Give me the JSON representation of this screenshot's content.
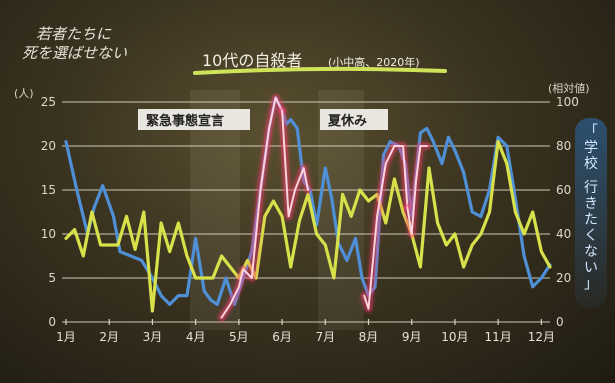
{
  "logo": {
    "line1": "若者たちに",
    "line2": "死を選ばせない"
  },
  "side_label": "「学校 行きたくない」",
  "chart_data": {
    "type": "line",
    "title": "10代の自殺者",
    "subtitle": "(小中高、2020年)",
    "ylabel": "(人)",
    "y2label": "(相対値)",
    "categories": [
      "1月",
      "2月",
      "3月",
      "4月",
      "5月",
      "6月",
      "7月",
      "8月",
      "9月",
      "10月",
      "11月",
      "12月"
    ],
    "ylim": [
      0,
      25
    ],
    "y2lim": [
      0,
      100
    ],
    "yticks": [
      0,
      5,
      10,
      15,
      20,
      25
    ],
    "y2ticks": [
      0,
      20,
      40,
      60,
      80,
      100
    ],
    "annotations": [
      "緊急事態宣言",
      "夏休み"
    ],
    "series": [
      {
        "axis": "left",
        "color": "#4f8fd6",
        "x": [
          1,
          1.25,
          1.5,
          1.65,
          1.85,
          2.1,
          2.25,
          2.5,
          2.75,
          3.0,
          3.2,
          3.4,
          3.6,
          3.8,
          4.0,
          4.2,
          4.35,
          4.5,
          4.7,
          4.9,
          5.1,
          5.3,
          5.5,
          5.7,
          5.85,
          6.0,
          6.1,
          6.2,
          6.35,
          6.5,
          6.65,
          6.8,
          7.0,
          7.15,
          7.3,
          7.5,
          7.7,
          7.85,
          8.0,
          8.15,
          8.35,
          8.5,
          8.7,
          8.85,
          9.0,
          9.2,
          9.35,
          9.5,
          9.7,
          9.85,
          10.0,
          10.2,
          10.4,
          10.6,
          10.8,
          11.0,
          11.2,
          11.4,
          11.6,
          11.8,
          12.0,
          12.2
        ],
        "values": [
          20.5,
          15,
          10,
          13,
          15.5,
          12,
          8,
          7.5,
          7,
          5,
          3,
          2,
          3,
          3,
          9.5,
          3.5,
          2.5,
          2,
          5,
          2,
          5,
          8,
          15,
          22,
          25.5,
          24,
          22.5,
          23,
          22,
          16,
          15,
          11,
          17.5,
          14,
          9,
          7,
          9.5,
          5,
          3,
          4,
          19,
          20.5,
          20,
          18,
          12,
          21.5,
          22,
          20.5,
          18,
          21,
          19.5,
          17,
          12.5,
          12,
          15,
          21,
          20,
          14,
          7.5,
          4,
          5,
          6.5
        ]
      },
      {
        "axis": "right",
        "color": "#d8e04a",
        "x": [
          1,
          1.2,
          1.4,
          1.6,
          1.8,
          2.0,
          2.2,
          2.4,
          2.6,
          2.8,
          3.0,
          3.2,
          3.4,
          3.6,
          3.8,
          4.0,
          4.2,
          4.4,
          4.6,
          4.8,
          5.0,
          5.2,
          5.4,
          5.6,
          5.8,
          6.0,
          6.2,
          6.4,
          6.6,
          6.8,
          7.0,
          7.2,
          7.4,
          7.6,
          7.8,
          8.0,
          8.2,
          8.4,
          8.6,
          8.8,
          9.0,
          9.2,
          9.4,
          9.6,
          9.8,
          10.0,
          10.2,
          10.4,
          10.6,
          10.8,
          11.0,
          11.2,
          11.4,
          11.6,
          11.8,
          12.0,
          12.2
        ],
        "values": [
          38,
          42,
          30,
          50,
          35,
          35,
          35,
          48,
          33,
          50,
          5,
          45,
          32,
          45,
          30,
          20,
          20,
          20,
          30,
          25,
          20,
          28,
          20,
          48,
          55,
          48,
          25,
          46,
          58,
          40,
          35,
          20,
          58,
          48,
          60,
          55,
          58,
          45,
          65,
          50,
          40,
          25,
          70,
          45,
          35,
          40,
          25,
          35,
          40,
          50,
          82,
          72,
          50,
          40,
          50,
          32,
          25
        ]
      },
      {
        "axis": "left",
        "color": "#ff3b6e",
        "glow": true,
        "segments": [
          {
            "x": [
              4.6,
              4.8,
              5.0,
              5.1,
              5.3,
              5.5,
              5.7,
              5.85,
              6.0
            ],
            "values": [
              0.5,
              2,
              4,
              6,
              5,
              15,
              22,
              25.5,
              24
            ]
          },
          {
            "x": [
              6.0,
              6.15,
              6.3,
              6.5,
              6.6
            ],
            "values": [
              24,
              12,
              15,
              17.5,
              15
            ]
          },
          {
            "x": [
              7.9,
              8.0,
              8.2,
              8.4,
              8.6,
              8.8,
              8.9
            ],
            "values": [
              3,
              1.5,
              12,
              18,
              20,
              20,
              13
            ]
          },
          {
            "x": [
              8.9,
              9.0,
              9.1,
              9.2,
              9.35
            ],
            "values": [
              13,
              10,
              16,
              20,
              20
            ]
          }
        ]
      }
    ]
  }
}
